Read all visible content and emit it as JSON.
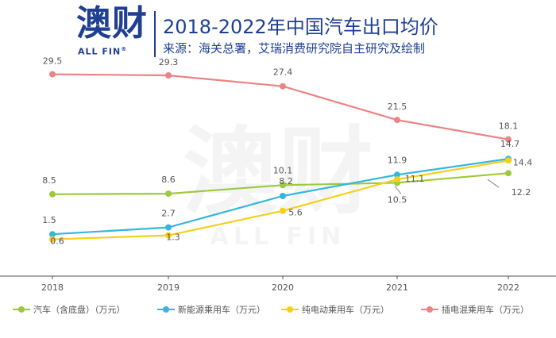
{
  "header": {
    "logo_text": "澳财",
    "logo_subtext": "ALL FIN",
    "logo_mark": "®",
    "title": "2018-2022年中国汽车出口均价",
    "source": "来源：海关总署，艾瑞消费研究院自主研究及绘制"
  },
  "watermark": {
    "main": "澳财",
    "sub": "ALL FIN"
  },
  "chart_data": {
    "type": "line",
    "title": "2018-2022年中国汽车出口均价",
    "x": [
      "2018",
      "2019",
      "2020",
      "2021",
      "2022"
    ],
    "ylim": [
      0,
      32
    ],
    "grid": false,
    "legend_position": "bottom",
    "series": [
      {
        "name": "汽车（含底盘）（万元）",
        "color": "#9dc93d",
        "values": [
          8.5,
          8.6,
          10.1,
          10.5,
          12.2
        ],
        "label_text": [
          "8.5",
          "8.6",
          "10.1",
          "10.5",
          "12.2"
        ]
      },
      {
        "name": "新能源乘用车（万元）",
        "color": "#35b6e0",
        "values": [
          1.5,
          2.7,
          8.2,
          11.9,
          14.7
        ],
        "label_text": [
          "1.5",
          "2.7",
          "8.2",
          "11.9",
          "14.7"
        ]
      },
      {
        "name": "纯电动乘用车（万元）",
        "color": "#f5d01a",
        "values": [
          0.6,
          1.3,
          5.6,
          11.1,
          14.4
        ],
        "label_text": [
          "0.6",
          "1.3",
          "5.6",
          "11.1",
          "14.4"
        ]
      },
      {
        "name": "插电混乘用车（万元）",
        "color": "#ec8384",
        "values": [
          29.5,
          29.3,
          27.4,
          21.5,
          18.1
        ],
        "label_text": [
          "29.5",
          "29.3",
          "27.4",
          "21.5",
          "18.1"
        ]
      }
    ]
  },
  "legend_labels": {
    "s0": "汽车（含底盘）（万元）",
    "s1": "新能源乘用车（万元）",
    "s2": "纯电动乘用车（万元）",
    "s3": "插电混乘用车（万元）"
  }
}
